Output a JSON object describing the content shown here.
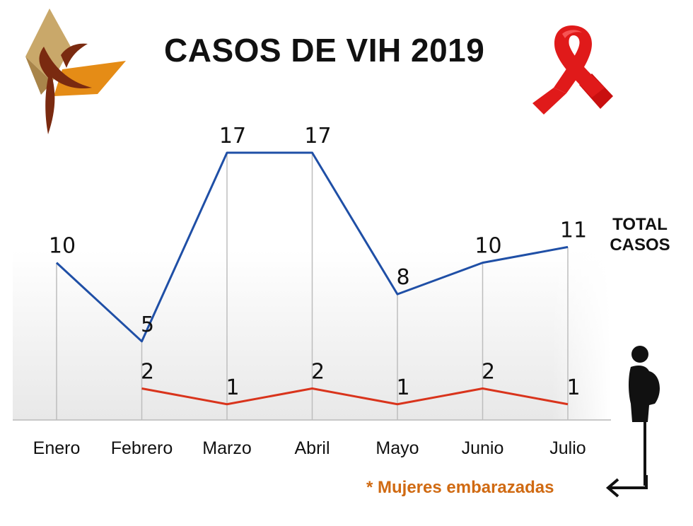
{
  "title": "CASOS DE VIH 2019",
  "total_label_line1": "TOTAL",
  "total_label_line2": "CASOS",
  "footnote": "* Mujeres embarazadas",
  "icons": {
    "logo": "ribbon-leaf-logo",
    "awareness": "red-ribbon-icon",
    "pregnant": "pregnant-woman-icon",
    "arrow": "arrow-left-icon"
  },
  "colors": {
    "total": "#1f4fa6",
    "pregnant": "#d9341c",
    "ribbon": "#e01a1a",
    "footnote": "#d06a12"
  },
  "chart_data": {
    "type": "line",
    "categories": [
      "Enero",
      "Febrero",
      "Marzo",
      "Abril",
      "Mayo",
      "Junio",
      "Julio"
    ],
    "series": [
      {
        "name": "TOTAL CASOS",
        "values": [
          10,
          5,
          17,
          17,
          8,
          10,
          11
        ]
      },
      {
        "name": "* Mujeres embarazadas",
        "values": [
          null,
          2,
          1,
          2,
          1,
          2,
          1
        ]
      }
    ],
    "ylim": [
      0,
      18
    ],
    "grid": "vertical",
    "legend": "right"
  }
}
